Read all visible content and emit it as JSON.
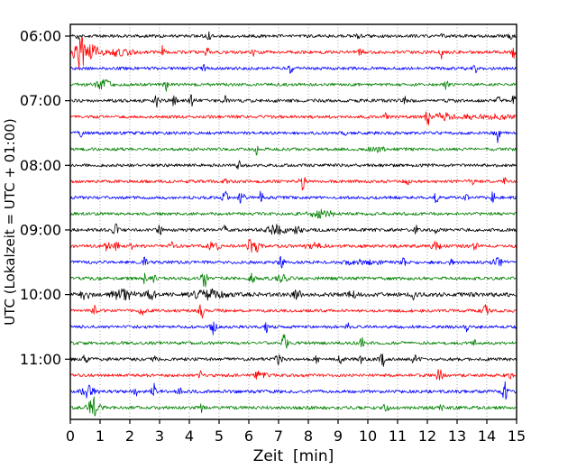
{
  "figure": {
    "xlabel": "Zeit  [min]",
    "ylabel": "UTC (Lokalzeit = UTC + 01:00)"
  },
  "chart_data": {
    "type": "line",
    "subtype": "helicorder-seismogram",
    "title": "",
    "xlabel": "Zeit  [min]",
    "ylabel": "UTC (Lokalzeit = UTC + 01:00)",
    "xlim": [
      0,
      15
    ],
    "x_ticks": [
      0,
      1,
      2,
      3,
      4,
      5,
      6,
      7,
      8,
      9,
      10,
      11,
      12,
      13,
      14,
      15
    ],
    "y_tick_labels": [
      "06:00",
      "07:00",
      "08:00",
      "09:00",
      "10:00",
      "11:00"
    ],
    "grid": "vertical-dotted",
    "legend": "none",
    "minutes_per_line": 15,
    "color_cycle": [
      "#000000",
      "#ff0000",
      "#0000ff",
      "#008000"
    ],
    "grid_color": "#999999",
    "events_format": "t=start minute on line, a=peak amplitude (px), w=gaussian sigma (min)",
    "series": [
      {
        "name": "06:00",
        "color": "#000000",
        "noise": 1.7,
        "events": [
          {
            "t": 0.3,
            "a": 2.5,
            "w": 0.1
          },
          {
            "t": 4.65,
            "a": 6,
            "w": 0.06
          },
          {
            "t": 9.7,
            "a": 2.5,
            "w": 0.08
          },
          {
            "t": 12.5,
            "a": 3,
            "w": 0.08
          },
          {
            "t": 14.8,
            "a": 3,
            "w": 0.06
          }
        ]
      },
      {
        "name": "06:15",
        "color": "#ff0000",
        "noise": 1.8,
        "events": [
          {
            "t": 0.12,
            "a": 9,
            "w": 0.06
          },
          {
            "t": 0.35,
            "a": 21,
            "w": 0.12
          },
          {
            "t": 0.7,
            "a": 7,
            "w": 0.3
          },
          {
            "t": 1.6,
            "a": 3,
            "w": 0.5
          },
          {
            "t": 3.1,
            "a": 6,
            "w": 0.06
          },
          {
            "t": 4.6,
            "a": 5,
            "w": 0.06
          },
          {
            "t": 6.15,
            "a": 5,
            "w": 0.07
          },
          {
            "t": 9.75,
            "a": 3,
            "w": 0.1
          },
          {
            "t": 12.5,
            "a": 8,
            "w": 0.07
          },
          {
            "t": 14.9,
            "a": 7,
            "w": 0.06
          }
        ]
      },
      {
        "name": "06:30",
        "color": "#0000ff",
        "noise": 1.7,
        "events": [
          {
            "t": 4.5,
            "a": 3,
            "w": 0.06
          },
          {
            "t": 7.4,
            "a": 6,
            "w": 0.07
          },
          {
            "t": 13.2,
            "a": 4,
            "w": 0.06
          },
          {
            "t": 13.6,
            "a": 6,
            "w": 0.07
          }
        ]
      },
      {
        "name": "06:45",
        "color": "#008000",
        "noise": 1.7,
        "events": [
          {
            "t": 1.1,
            "a": 5,
            "w": 0.25
          },
          {
            "t": 3.2,
            "a": 7,
            "w": 0.07
          },
          {
            "t": 12.6,
            "a": 9,
            "w": 0.08
          }
        ]
      },
      {
        "name": "07:00",
        "color": "#000000",
        "noise": 1.8,
        "events": [
          {
            "t": 2.9,
            "a": 7,
            "w": 0.07
          },
          {
            "t": 3.5,
            "a": 6,
            "w": 0.07
          },
          {
            "t": 4.1,
            "a": 8,
            "w": 0.08
          },
          {
            "t": 5.2,
            "a": 5,
            "w": 0.06
          },
          {
            "t": 11.2,
            "a": 6,
            "w": 0.07
          },
          {
            "t": 14.4,
            "a": 5,
            "w": 0.06
          },
          {
            "t": 14.9,
            "a": 6,
            "w": 0.07
          }
        ]
      },
      {
        "name": "07:15",
        "color": "#ff0000",
        "noise": 1.7,
        "events": [
          {
            "t": 10.6,
            "a": 5,
            "w": 0.06
          },
          {
            "t": 12.0,
            "a": 12,
            "w": 0.07
          },
          {
            "t": 12.5,
            "a": 5,
            "w": 0.2
          },
          {
            "t": 13.8,
            "a": 2,
            "w": 1.2
          }
        ]
      },
      {
        "name": "07:30",
        "color": "#0000ff",
        "noise": 1.7,
        "events": [
          {
            "t": 0.35,
            "a": 3,
            "w": 0.08
          },
          {
            "t": 9.2,
            "a": 3,
            "w": 0.08
          },
          {
            "t": 14.35,
            "a": 12,
            "w": 0.07
          }
        ]
      },
      {
        "name": "07:45",
        "color": "#008000",
        "noise": 1.7,
        "events": [
          {
            "t": 6.25,
            "a": 5,
            "w": 0.07
          },
          {
            "t": 10.3,
            "a": 2,
            "w": 0.3
          }
        ]
      },
      {
        "name": "08:00",
        "color": "#000000",
        "noise": 1.7,
        "events": [
          {
            "t": 5.65,
            "a": 5,
            "w": 0.06
          }
        ]
      },
      {
        "name": "08:15",
        "color": "#ff0000",
        "noise": 1.7,
        "events": [
          {
            "t": 5.2,
            "a": 3,
            "w": 0.06
          },
          {
            "t": 7.8,
            "a": 10,
            "w": 0.08
          },
          {
            "t": 11.3,
            "a": 7,
            "w": 0.07
          },
          {
            "t": 13.5,
            "a": 4,
            "w": 0.08
          },
          {
            "t": 14.6,
            "a": 3,
            "w": 0.06
          }
        ]
      },
      {
        "name": "08:30",
        "color": "#0000ff",
        "noise": 1.7,
        "events": [
          {
            "t": 5.2,
            "a": 7,
            "w": 0.08
          },
          {
            "t": 5.75,
            "a": 8,
            "w": 0.08
          },
          {
            "t": 6.4,
            "a": 6,
            "w": 0.07
          },
          {
            "t": 12.3,
            "a": 6,
            "w": 0.07
          },
          {
            "t": 13.3,
            "a": 5,
            "w": 0.06
          },
          {
            "t": 14.2,
            "a": 6,
            "w": 0.07
          }
        ]
      },
      {
        "name": "08:45",
        "color": "#008000",
        "noise": 1.7,
        "events": [
          {
            "t": 8.45,
            "a": 3.5,
            "w": 0.4
          }
        ]
      },
      {
        "name": "09:00",
        "color": "#000000",
        "noise": 1.8,
        "events": [
          {
            "t": 1.5,
            "a": 8,
            "w": 0.08
          },
          {
            "t": 3.0,
            "a": 7,
            "w": 0.07
          },
          {
            "t": 5.2,
            "a": 5,
            "w": 0.07
          },
          {
            "t": 6.95,
            "a": 6,
            "w": 0.3
          },
          {
            "t": 7.6,
            "a": 3,
            "w": 0.2
          },
          {
            "t": 11.6,
            "a": 5,
            "w": 0.07
          },
          {
            "t": 12.3,
            "a": 4,
            "w": 0.07
          }
        ]
      },
      {
        "name": "09:15",
        "color": "#ff0000",
        "noise": 1.8,
        "events": [
          {
            "t": 1.25,
            "a": 6,
            "w": 0.1
          },
          {
            "t": 1.55,
            "a": 5,
            "w": 0.08
          },
          {
            "t": 2.05,
            "a": 4,
            "w": 0.07
          },
          {
            "t": 3.4,
            "a": 4,
            "w": 0.07
          },
          {
            "t": 4.7,
            "a": 5,
            "w": 0.08
          },
          {
            "t": 4.95,
            "a": 4,
            "w": 0.07
          },
          {
            "t": 6.05,
            "a": 10,
            "w": 0.09
          },
          {
            "t": 6.3,
            "a": 7,
            "w": 0.1
          },
          {
            "t": 8.2,
            "a": 3,
            "w": 0.3
          },
          {
            "t": 12.3,
            "a": 4,
            "w": 0.15
          },
          {
            "t": 13.6,
            "a": 6,
            "w": 0.07
          }
        ]
      },
      {
        "name": "09:30",
        "color": "#0000ff",
        "noise": 1.7,
        "events": [
          {
            "t": 2.5,
            "a": 7,
            "w": 0.07
          },
          {
            "t": 7.1,
            "a": 7,
            "w": 0.07
          },
          {
            "t": 9.8,
            "a": 2,
            "w": 0.7
          },
          {
            "t": 11.2,
            "a": 4,
            "w": 0.08
          },
          {
            "t": 12.8,
            "a": 4,
            "w": 0.08
          },
          {
            "t": 14.35,
            "a": 4,
            "w": 0.2
          }
        ]
      },
      {
        "name": "09:45",
        "color": "#008000",
        "noise": 1.8,
        "events": [
          {
            "t": 2.5,
            "a": 5,
            "w": 0.08
          },
          {
            "t": 2.8,
            "a": 5,
            "w": 0.07
          },
          {
            "t": 4.5,
            "a": 10,
            "w": 0.09
          },
          {
            "t": 6.1,
            "a": 5,
            "w": 0.08
          },
          {
            "t": 7.1,
            "a": 4,
            "w": 0.2
          }
        ]
      },
      {
        "name": "10:00",
        "color": "#000000",
        "noise": 2.3,
        "events": [
          {
            "t": 0.5,
            "a": 4,
            "w": 0.15
          },
          {
            "t": 1.75,
            "a": 5,
            "w": 0.4
          },
          {
            "t": 2.7,
            "a": 4,
            "w": 0.15
          },
          {
            "t": 4.6,
            "a": 5,
            "w": 0.5
          },
          {
            "t": 7.6,
            "a": 4,
            "w": 0.15
          },
          {
            "t": 9.5,
            "a": 3,
            "w": 0.15
          },
          {
            "t": 11.5,
            "a": 7,
            "w": 0.08
          }
        ]
      },
      {
        "name": "10:15",
        "color": "#ff0000",
        "noise": 1.7,
        "events": [
          {
            "t": 0.8,
            "a": 5,
            "w": 0.07
          },
          {
            "t": 2.4,
            "a": 5,
            "w": 0.08
          },
          {
            "t": 4.4,
            "a": 9,
            "w": 0.07
          },
          {
            "t": 13.95,
            "a": 6,
            "w": 0.12
          }
        ]
      },
      {
        "name": "10:30",
        "color": "#0000ff",
        "noise": 1.7,
        "events": [
          {
            "t": 4.8,
            "a": 9,
            "w": 0.08
          },
          {
            "t": 6.6,
            "a": 5,
            "w": 0.07
          },
          {
            "t": 9.3,
            "a": 5,
            "w": 0.08
          },
          {
            "t": 13.3,
            "a": 5,
            "w": 0.07
          }
        ]
      },
      {
        "name": "10:45",
        "color": "#008000",
        "noise": 1.7,
        "events": [
          {
            "t": 7.2,
            "a": 10,
            "w": 0.08
          },
          {
            "t": 9.8,
            "a": 5,
            "w": 0.08
          },
          {
            "t": 13.6,
            "a": 7,
            "w": 0.07
          }
        ]
      },
      {
        "name": "11:00",
        "color": "#000000",
        "noise": 1.8,
        "events": [
          {
            "t": 0.5,
            "a": 5,
            "w": 0.07
          },
          {
            "t": 2.8,
            "a": 3,
            "w": 0.07
          },
          {
            "t": 7.0,
            "a": 9,
            "w": 0.09
          },
          {
            "t": 8.3,
            "a": 5,
            "w": 0.08
          },
          {
            "t": 9.1,
            "a": 5,
            "w": 0.08
          },
          {
            "t": 9.8,
            "a": 4,
            "w": 0.07
          },
          {
            "t": 10.5,
            "a": 8,
            "w": 0.09
          },
          {
            "t": 11.6,
            "a": 8,
            "w": 0.09
          }
        ]
      },
      {
        "name": "11:15",
        "color": "#ff0000",
        "noise": 1.7,
        "events": [
          {
            "t": 4.4,
            "a": 5,
            "w": 0.07
          },
          {
            "t": 6.3,
            "a": 5,
            "w": 0.08
          },
          {
            "t": 6.55,
            "a": 5,
            "w": 0.07
          },
          {
            "t": 12.4,
            "a": 9,
            "w": 0.09
          },
          {
            "t": 14.8,
            "a": 2.5,
            "w": 0.08
          }
        ]
      },
      {
        "name": "11:30",
        "color": "#0000ff",
        "noise": 1.8,
        "events": [
          {
            "t": 0.6,
            "a": 6,
            "w": 0.2
          },
          {
            "t": 2.2,
            "a": 5,
            "w": 0.07
          },
          {
            "t": 2.8,
            "a": 8,
            "w": 0.08
          },
          {
            "t": 3.7,
            "a": 5,
            "w": 0.07
          },
          {
            "t": 14.6,
            "a": 10,
            "w": 0.08
          }
        ]
      },
      {
        "name": "11:45",
        "color": "#008000",
        "noise": 1.8,
        "events": [
          {
            "t": 0.78,
            "a": 11,
            "w": 0.18
          },
          {
            "t": 4.4,
            "a": 5,
            "w": 0.07
          },
          {
            "t": 10.6,
            "a": 5,
            "w": 0.08
          },
          {
            "t": 12.5,
            "a": 4,
            "w": 0.08
          }
        ]
      }
    ]
  }
}
